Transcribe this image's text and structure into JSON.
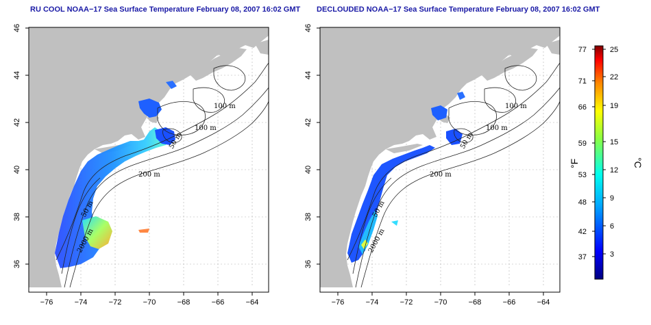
{
  "panels": [
    {
      "id": "left",
      "title": "RU COOL NOAA−17 Sea Surface Temperature February 08, 2007 16:02 GMT",
      "isobath_labels": [
        "100 m",
        "100 m",
        "50 m",
        "200 m",
        "50 m",
        "2000 m"
      ]
    },
    {
      "id": "right",
      "title": "DECLOUDED NOAA−17 Sea Surface Temperature February 08, 2007 16:02 GMT",
      "isobath_labels": [
        "100 m",
        "100 m",
        "50 m",
        "200 m",
        "50 m",
        "2000 m"
      ]
    }
  ],
  "axes": {
    "lon_ticks": [
      "−76",
      "−74",
      "−72",
      "−70",
      "−68",
      "−66",
      "−64"
    ],
    "lat_ticks": [
      "36",
      "38",
      "40",
      "42",
      "44",
      "46"
    ],
    "lon_range": [
      -77,
      -63
    ],
    "lat_range": [
      35,
      46
    ]
  },
  "colorbar": {
    "fahrenheit_ticks": [
      "77",
      "71",
      "66",
      "59",
      "53",
      "48",
      "42",
      "37"
    ],
    "celsius_ticks": [
      "25",
      "22",
      "19",
      "15",
      "12",
      "9",
      "6",
      "3"
    ],
    "fahrenheit_unit": "°F",
    "celsius_unit": "°C"
  },
  "colors": {
    "land": "#c0c0c0",
    "ocean": "#ffffff",
    "title": "#1a1aa6",
    "grid": "#b0b0b0"
  }
}
